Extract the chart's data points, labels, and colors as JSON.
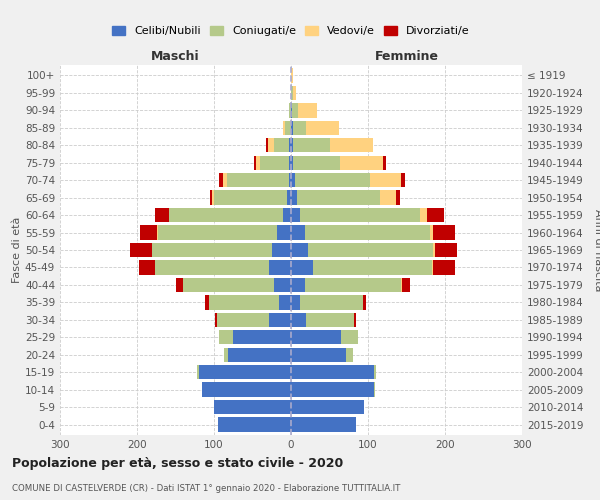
{
  "age_groups": [
    "0-4",
    "5-9",
    "10-14",
    "15-19",
    "20-24",
    "25-29",
    "30-34",
    "35-39",
    "40-44",
    "45-49",
    "50-54",
    "55-59",
    "60-64",
    "65-69",
    "70-74",
    "75-79",
    "80-84",
    "85-89",
    "90-94",
    "95-99",
    "100+"
  ],
  "birth_years": [
    "2015-2019",
    "2010-2014",
    "2005-2009",
    "2000-2004",
    "1995-1999",
    "1990-1994",
    "1985-1989",
    "1980-1984",
    "1975-1979",
    "1970-1974",
    "1965-1969",
    "1960-1964",
    "1955-1959",
    "1950-1954",
    "1945-1949",
    "1940-1944",
    "1935-1939",
    "1930-1934",
    "1925-1929",
    "1920-1924",
    "≤ 1919"
  ],
  "colors": {
    "celibe": "#4472c4",
    "coniugato": "#b5c98a",
    "vedovo": "#ffd280",
    "divorziato": "#c00000"
  },
  "legend_labels": [
    "Celibi/Nubili",
    "Coniugati/e",
    "Vedovi/e",
    "Divorziati/e"
  ],
  "maschi_celibe": [
    95,
    100,
    115,
    120,
    82,
    75,
    28,
    15,
    22,
    28,
    25,
    18,
    10,
    5,
    3,
    2,
    2,
    0,
    0,
    0,
    0
  ],
  "maschi_coniugato": [
    0,
    0,
    1,
    2,
    5,
    18,
    68,
    92,
    118,
    148,
    155,
    155,
    148,
    95,
    80,
    38,
    20,
    8,
    2,
    0,
    0
  ],
  "maschi_vedovo": [
    0,
    0,
    0,
    0,
    0,
    0,
    0,
    0,
    0,
    0,
    1,
    1,
    1,
    3,
    5,
    5,
    8,
    3,
    0,
    0,
    0
  ],
  "maschi_divorziato": [
    0,
    0,
    0,
    0,
    0,
    0,
    3,
    5,
    10,
    22,
    28,
    22,
    18,
    2,
    5,
    3,
    2,
    0,
    0,
    0,
    0
  ],
  "femmine_nubile": [
    85,
    95,
    108,
    108,
    72,
    65,
    20,
    12,
    18,
    28,
    22,
    18,
    12,
    8,
    5,
    2,
    3,
    2,
    1,
    0,
    0
  ],
  "femmine_coniugata": [
    0,
    0,
    1,
    2,
    8,
    22,
    62,
    82,
    125,
    155,
    162,
    162,
    155,
    108,
    98,
    62,
    48,
    18,
    8,
    2,
    0
  ],
  "femmine_vedova": [
    0,
    0,
    0,
    0,
    0,
    0,
    0,
    0,
    1,
    2,
    3,
    5,
    10,
    20,
    40,
    55,
    55,
    42,
    25,
    5,
    2
  ],
  "femmine_divorziata": [
    0,
    0,
    0,
    0,
    0,
    0,
    3,
    3,
    10,
    28,
    28,
    28,
    22,
    5,
    5,
    5,
    0,
    0,
    0,
    0,
    0
  ],
  "title": "Popolazione per età, sesso e stato civile - 2020",
  "subtitle": "COMUNE DI CASTELVERDE (CR) - Dati ISTAT 1° gennaio 2020 - Elaborazione TUTTITALIA.IT",
  "header_left": "Maschi",
  "header_right": "Femmine",
  "ylabel_left": "Fasce di età",
  "ylabel_right": "Anni di nascita",
  "xlim": 300,
  "bg_color": "#f0f0f0",
  "plot_bg": "#ffffff"
}
